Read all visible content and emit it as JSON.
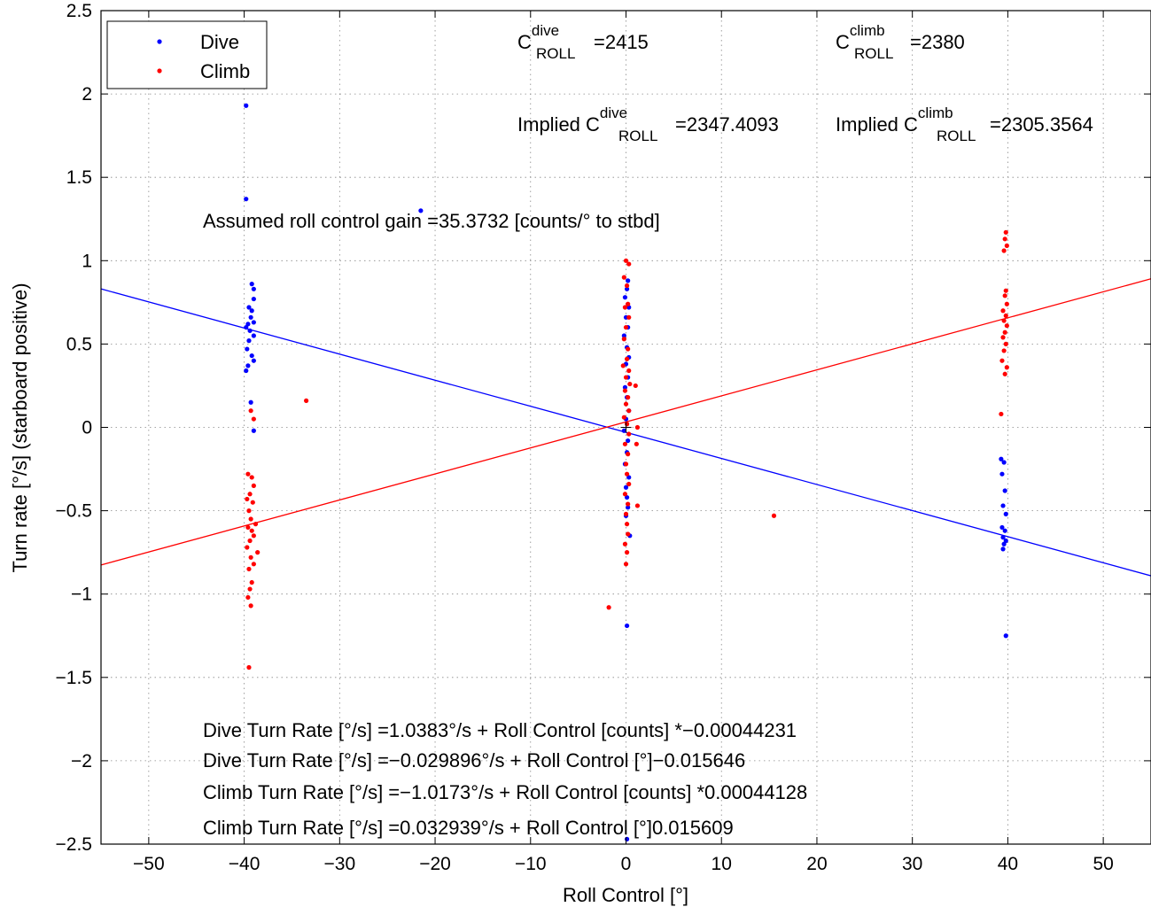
{
  "chart_data": {
    "type": "scatter",
    "xlabel": "Roll Control [°]",
    "ylabel": "Turn rate [°/s] (starboard positive)",
    "xlim": [
      -55,
      55
    ],
    "ylim": [
      -2.5,
      2.5
    ],
    "xticks": [
      -50,
      -40,
      -30,
      -20,
      -10,
      0,
      10,
      20,
      30,
      40,
      50
    ],
    "yticks": [
      2.5,
      2,
      1.5,
      1,
      0.5,
      0,
      -0.5,
      -1,
      -1.5,
      -2,
      -2.5
    ],
    "xtick_labels": [
      "−50",
      "−40",
      "−30",
      "−20",
      "−10",
      "0",
      "10",
      "20",
      "30",
      "40",
      "50"
    ],
    "ytick_labels": [
      "2.5",
      "2",
      "1.5",
      "1",
      "0.5",
      "0",
      "−0.5",
      "−1",
      "−1.5",
      "−2",
      "−2.5"
    ],
    "grid": true,
    "legend_position": "top-left",
    "series": [
      {
        "name": "Dive",
        "color": "#0000ff",
        "points": [
          [
            -39.8,
            1.93
          ],
          [
            -39.8,
            1.37
          ],
          [
            -39.2,
            0.86
          ],
          [
            -39.0,
            0.83
          ],
          [
            -39.0,
            0.77
          ],
          [
            -39.5,
            0.72
          ],
          [
            -39.2,
            0.7
          ],
          [
            -39.3,
            0.66
          ],
          [
            -39.0,
            0.63
          ],
          [
            -39.6,
            0.62
          ],
          [
            -39.8,
            0.6
          ],
          [
            -39.4,
            0.58
          ],
          [
            -39.0,
            0.55
          ],
          [
            -39.5,
            0.52
          ],
          [
            -39.7,
            0.47
          ],
          [
            -39.2,
            0.43
          ],
          [
            -39.0,
            0.4
          ],
          [
            -39.6,
            0.37
          ],
          [
            -39.8,
            0.34
          ],
          [
            -39.3,
            0.15
          ],
          [
            -39.0,
            -0.02
          ],
          [
            -21.5,
            1.3
          ],
          [
            0.2,
            0.88
          ],
          [
            0.1,
            0.83
          ],
          [
            -0.1,
            0.78
          ],
          [
            0.3,
            0.72
          ],
          [
            0.0,
            0.66
          ],
          [
            0.2,
            0.6
          ],
          [
            -0.2,
            0.55
          ],
          [
            0.1,
            0.48
          ],
          [
            0.3,
            0.42
          ],
          [
            0.0,
            0.38
          ],
          [
            0.2,
            0.3
          ],
          [
            -0.1,
            0.24
          ],
          [
            0.1,
            0.18
          ],
          [
            0.3,
            0.1
          ],
          [
            0.0,
            0.05
          ],
          [
            -0.2,
            -0.02
          ],
          [
            0.2,
            -0.08
          ],
          [
            0.1,
            -0.15
          ],
          [
            -0.1,
            -0.22
          ],
          [
            0.3,
            -0.3
          ],
          [
            0.0,
            -0.36
          ],
          [
            0.1,
            -0.42
          ],
          [
            0.2,
            -0.48
          ],
          [
            0.4,
            -0.65
          ],
          [
            0.0,
            -0.53
          ],
          [
            0.1,
            -1.19
          ],
          [
            0.1,
            -2.47
          ],
          [
            39.3,
            -0.19
          ],
          [
            39.6,
            -0.21
          ],
          [
            39.4,
            -0.28
          ],
          [
            39.7,
            -0.38
          ],
          [
            39.5,
            -0.47
          ],
          [
            39.8,
            -0.52
          ],
          [
            39.4,
            -0.6
          ],
          [
            39.7,
            -0.62
          ],
          [
            39.5,
            -0.66
          ],
          [
            39.8,
            -0.68
          ],
          [
            39.6,
            -0.7
          ],
          [
            39.5,
            -0.73
          ],
          [
            39.8,
            -1.25
          ]
        ],
        "fit_line": {
          "y_at_x0": -0.029896,
          "slope": -0.015646
        }
      },
      {
        "name": "Climb",
        "color": "#ff0000",
        "points": [
          [
            -39.3,
            0.1
          ],
          [
            -39.0,
            0.05
          ],
          [
            -33.5,
            0.16
          ],
          [
            -39.6,
            -0.28
          ],
          [
            -39.2,
            -0.3
          ],
          [
            -39.0,
            -0.35
          ],
          [
            -39.4,
            -0.4
          ],
          [
            -39.7,
            -0.43
          ],
          [
            -39.1,
            -0.45
          ],
          [
            -39.5,
            -0.5
          ],
          [
            -39.3,
            -0.55
          ],
          [
            -38.8,
            -0.58
          ],
          [
            -39.6,
            -0.6
          ],
          [
            -39.2,
            -0.62
          ],
          [
            -39.0,
            -0.65
          ],
          [
            -39.4,
            -0.68
          ],
          [
            -39.7,
            -0.72
          ],
          [
            -38.6,
            -0.75
          ],
          [
            -39.3,
            -0.78
          ],
          [
            -39.0,
            -0.82
          ],
          [
            -39.5,
            -0.85
          ],
          [
            -39.2,
            -0.93
          ],
          [
            -39.4,
            -0.97
          ],
          [
            -39.6,
            -1.02
          ],
          [
            -39.3,
            -1.07
          ],
          [
            -39.5,
            -1.44
          ],
          [
            0.0,
            1.0
          ],
          [
            0.3,
            0.98
          ],
          [
            -0.2,
            0.9
          ],
          [
            0.1,
            0.85
          ],
          [
            0.2,
            0.74
          ],
          [
            -0.1,
            0.72
          ],
          [
            0.3,
            0.66
          ],
          [
            0.0,
            0.6
          ],
          [
            -0.2,
            0.53
          ],
          [
            0.2,
            0.47
          ],
          [
            0.1,
            0.41
          ],
          [
            -0.3,
            0.37
          ],
          [
            0.3,
            0.34
          ],
          [
            0.0,
            0.3
          ],
          [
            0.4,
            0.26
          ],
          [
            -0.1,
            0.22
          ],
          [
            0.2,
            0.18
          ],
          [
            0.0,
            0.14
          ],
          [
            0.3,
            0.1
          ],
          [
            -0.2,
            0.06
          ],
          [
            0.1,
            0.02
          ],
          [
            0.3,
            -0.04
          ],
          [
            -0.1,
            -0.1
          ],
          [
            0.2,
            -0.16
          ],
          [
            0.0,
            -0.22
          ],
          [
            0.1,
            -0.28
          ],
          [
            0.3,
            -0.34
          ],
          [
            -0.1,
            -0.4
          ],
          [
            0.2,
            -0.46
          ],
          [
            0.0,
            -0.52
          ],
          [
            0.1,
            -0.58
          ],
          [
            0.2,
            -0.64
          ],
          [
            -0.1,
            -0.7
          ],
          [
            0.1,
            -0.75
          ],
          [
            0.0,
            -0.82
          ],
          [
            1.0,
            0.25
          ],
          [
            1.2,
            0.0
          ],
          [
            1.1,
            -0.1
          ],
          [
            1.2,
            -0.47
          ],
          [
            -1.8,
            -1.08
          ],
          [
            15.5,
            -0.53
          ],
          [
            39.8,
            1.17
          ],
          [
            39.7,
            1.13
          ],
          [
            39.9,
            1.09
          ],
          [
            39.6,
            1.06
          ],
          [
            39.8,
            0.82
          ],
          [
            39.7,
            0.79
          ],
          [
            39.9,
            0.74
          ],
          [
            39.5,
            0.7
          ],
          [
            39.8,
            0.67
          ],
          [
            39.6,
            0.64
          ],
          [
            39.9,
            0.61
          ],
          [
            39.7,
            0.57
          ],
          [
            39.5,
            0.54
          ],
          [
            39.8,
            0.5
          ],
          [
            39.6,
            0.46
          ],
          [
            39.4,
            0.4
          ],
          [
            39.9,
            0.36
          ],
          [
            39.7,
            0.32
          ],
          [
            39.3,
            0.08
          ]
        ],
        "fit_line": {
          "y_at_x0": 0.032939,
          "slope": 0.015609
        }
      }
    ]
  },
  "legend": {
    "dive_label": "Dive",
    "climb_label": "Climb"
  },
  "annotations": {
    "c_roll_dive": {
      "base": "C",
      "sup": "dive",
      "sub": "ROLL",
      "value": "=2415"
    },
    "c_roll_climb": {
      "base": "C",
      "sup": "climb",
      "sub": "ROLL",
      "value": "=2380"
    },
    "implied_dive": {
      "prefix": "Implied C",
      "sup": "dive",
      "sub": "ROLL",
      "value": "=2347.4093"
    },
    "implied_climb": {
      "prefix": "Implied C",
      "sup": "climb",
      "sub": "ROLL",
      "value": "=2305.3564"
    },
    "gain": "Assumed roll control gain =35.3732 [counts/° to stbd]",
    "eq1": "Dive Turn Rate [°/s] =1.0383°/s + Roll Control [counts] *−0.00044231",
    "eq2": "Dive Turn Rate [°/s] =−0.029896°/s + Roll Control [°]−0.015646",
    "eq3": "Climb Turn Rate [°/s] =−1.0173°/s + Roll Control [counts] *0.00044128",
    "eq4": "Climb Turn Rate [°/s] =0.032939°/s + Roll Control [°]0.015609"
  }
}
